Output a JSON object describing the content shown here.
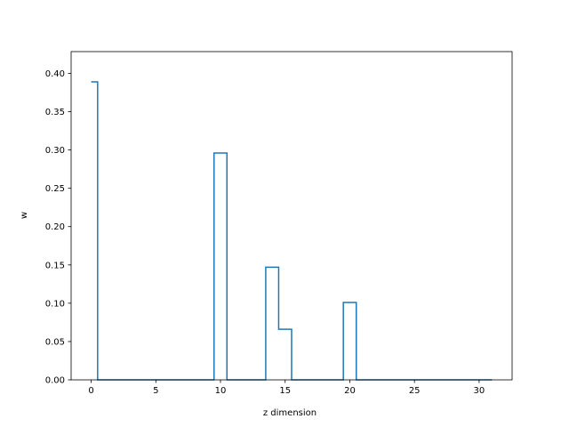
{
  "chart_data": {
    "type": "line",
    "drawstyle": "steps-mid",
    "title": "",
    "xlabel": "z dimension",
    "ylabel": "w",
    "xlim": [
      -1.55,
      32.55
    ],
    "ylim": [
      0,
      0.4284
    ],
    "xticks": [
      0,
      5,
      10,
      15,
      20,
      25,
      30
    ],
    "xtick_labels": [
      "0",
      "5",
      "10",
      "15",
      "20",
      "25",
      "30"
    ],
    "yticks": [
      0.0,
      0.05,
      0.1,
      0.15,
      0.2,
      0.25,
      0.3,
      0.35,
      0.4
    ],
    "ytick_labels": [
      "0.00",
      "0.05",
      "0.10",
      "0.15",
      "0.20",
      "0.25",
      "0.30",
      "0.35",
      "0.40"
    ],
    "grid": false,
    "legend": "none",
    "series": [
      {
        "color": "#1f77b4",
        "x": [
          0,
          1,
          2,
          3,
          4,
          5,
          6,
          7,
          8,
          9,
          10,
          11,
          12,
          13,
          14,
          15,
          16,
          17,
          18,
          19,
          20,
          21,
          22,
          23,
          24,
          25,
          26,
          27,
          28,
          29,
          30,
          31
        ],
        "y": [
          0.389,
          0,
          0,
          0,
          0,
          0,
          0,
          0,
          0,
          0,
          0.296,
          0,
          0,
          0,
          0.147,
          0.066,
          0,
          0,
          0,
          0,
          0.101,
          0,
          0,
          0,
          0,
          0,
          0,
          0,
          0,
          0,
          0,
          0
        ]
      }
    ]
  }
}
